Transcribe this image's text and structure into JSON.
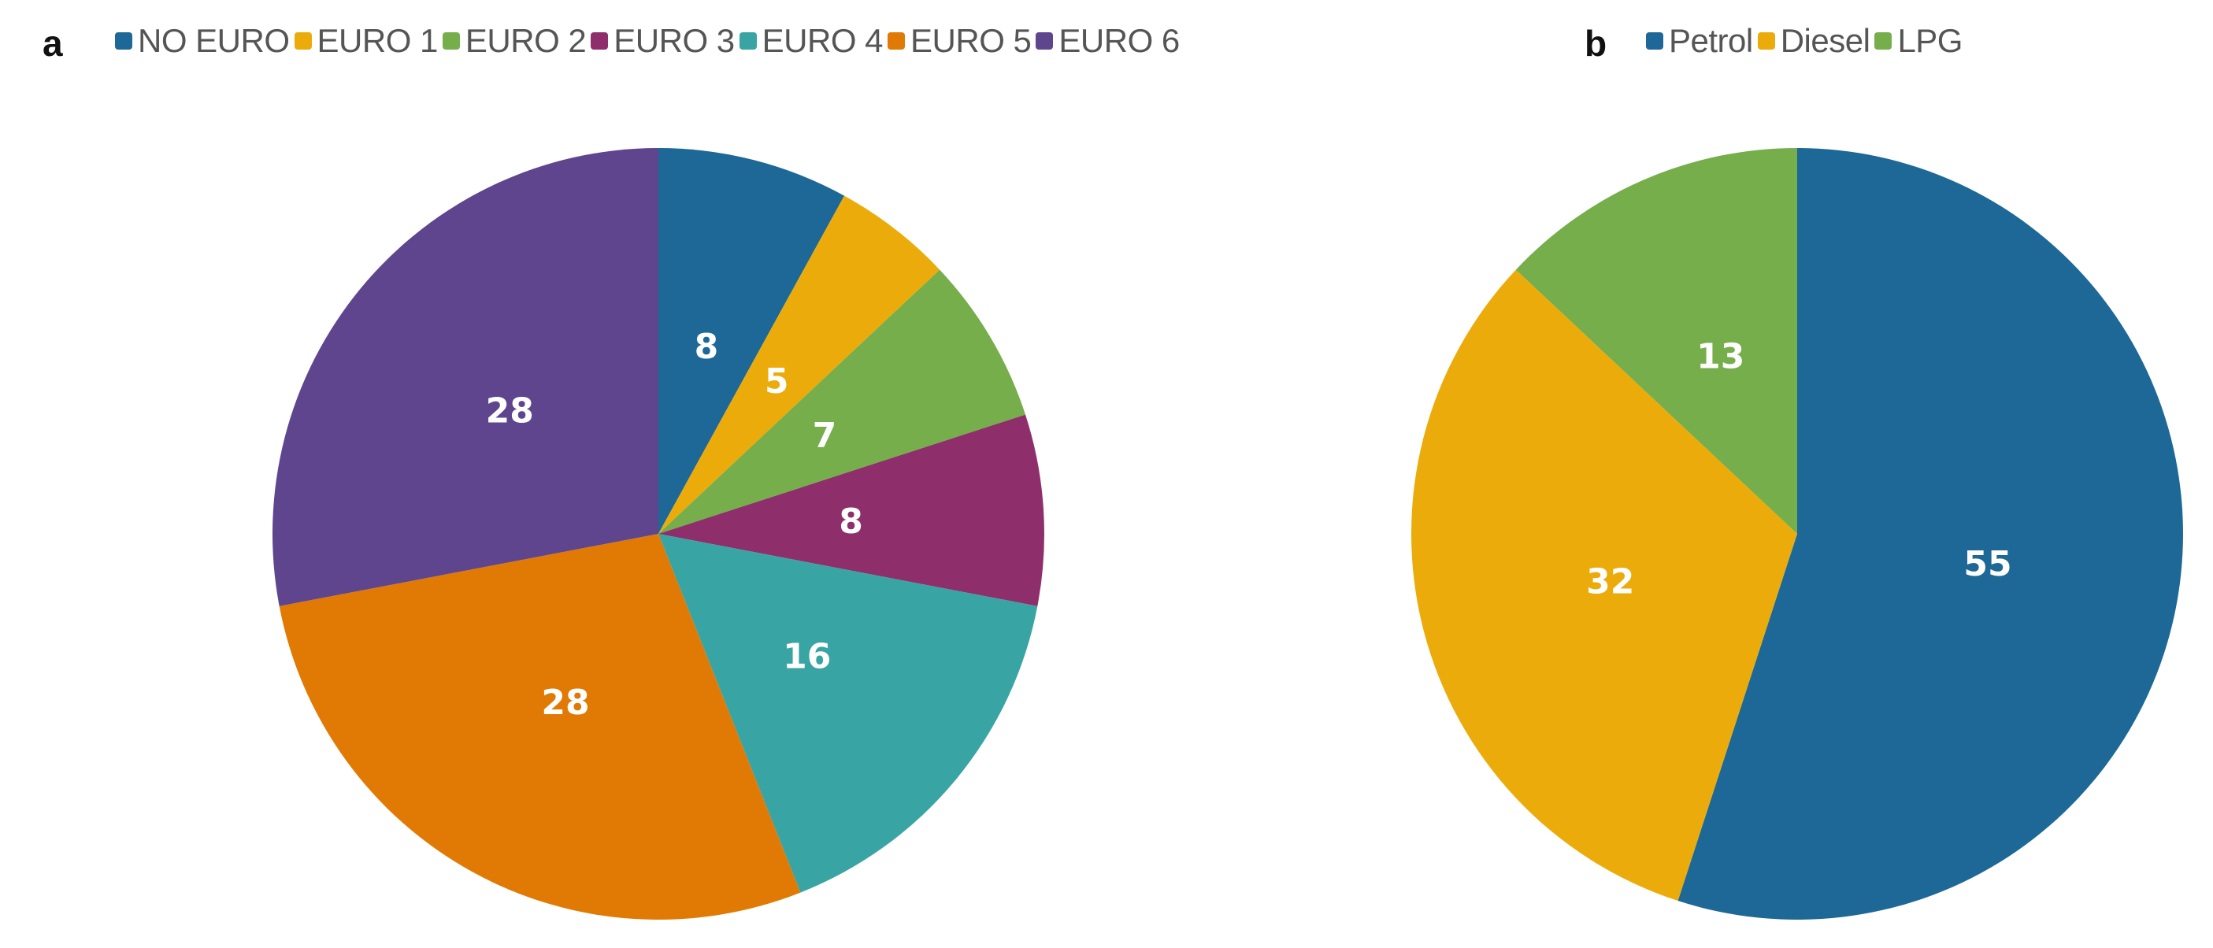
{
  "chart_data": [
    {
      "type": "pie",
      "panel_label": "a",
      "categories": [
        "NO EURO",
        "EURO 1",
        "EURO 2",
        "EURO 3",
        "EURO 4",
        "EURO 5",
        "EURO 6"
      ],
      "values": [
        8,
        5,
        7,
        8,
        16,
        28,
        28
      ],
      "colors": [
        "#1d6896",
        "#ebac0b",
        "#75ae4b",
        "#8e2f6b",
        "#39a4a4",
        "#e07a05",
        "#5e458e"
      ],
      "legend_position": "top",
      "start_angle": "12 o'clock, clockwise"
    },
    {
      "type": "pie",
      "panel_label": "b",
      "categories": [
        "Petrol",
        "Diesel",
        "LPG"
      ],
      "values": [
        55,
        32,
        13
      ],
      "colors": [
        "#1d6896",
        "#ebac0b",
        "#75ae4b"
      ],
      "legend_position": "top",
      "start_angle": "12 o'clock, clockwise"
    }
  ]
}
